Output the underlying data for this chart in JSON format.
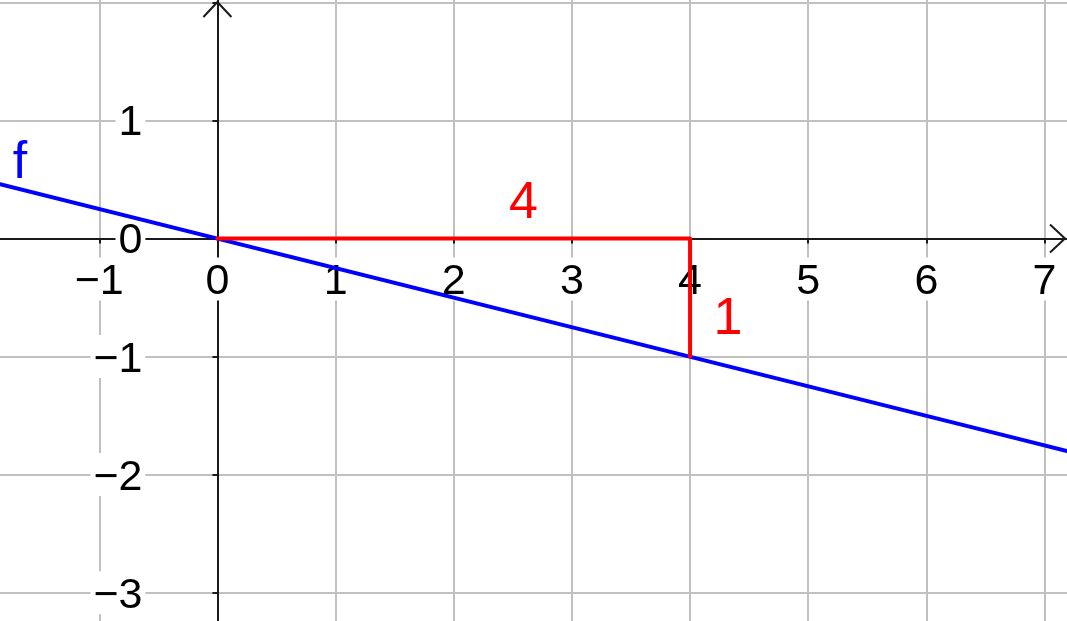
{
  "chart_data": {
    "type": "line",
    "series": [
      {
        "name": "f",
        "color": "#0000ff",
        "x": [
          -1.84,
          7.19
        ],
        "values": [
          0.46,
          -1.8
        ]
      },
      {
        "color": "#ff0000",
        "x": [
          0,
          4,
          4
        ],
        "values": [
          0,
          0,
          -1
        ]
      }
    ],
    "annotations": [
      {
        "text": "4",
        "x": 2.59,
        "y": 0
      },
      {
        "text": "1",
        "x": 4,
        "y": -0.66
      }
    ],
    "xlim": [
      -1.84,
      7.19
    ],
    "ylim": [
      -3.24,
      2.02
    ],
    "xticks": [
      {
        "value": -1,
        "label": "−1"
      },
      0,
      1,
      2,
      3,
      4,
      5,
      6,
      7
    ],
    "yticks": [
      {
        "value": -3,
        "label": "−3"
      },
      {
        "value": -2,
        "label": "−2"
      },
      {
        "value": -1,
        "label": "−1"
      },
      0,
      1,
      {
        "value": 2,
        "label": null
      }
    ],
    "grid": true,
    "marker": "none",
    "line_style": "solid"
  }
}
